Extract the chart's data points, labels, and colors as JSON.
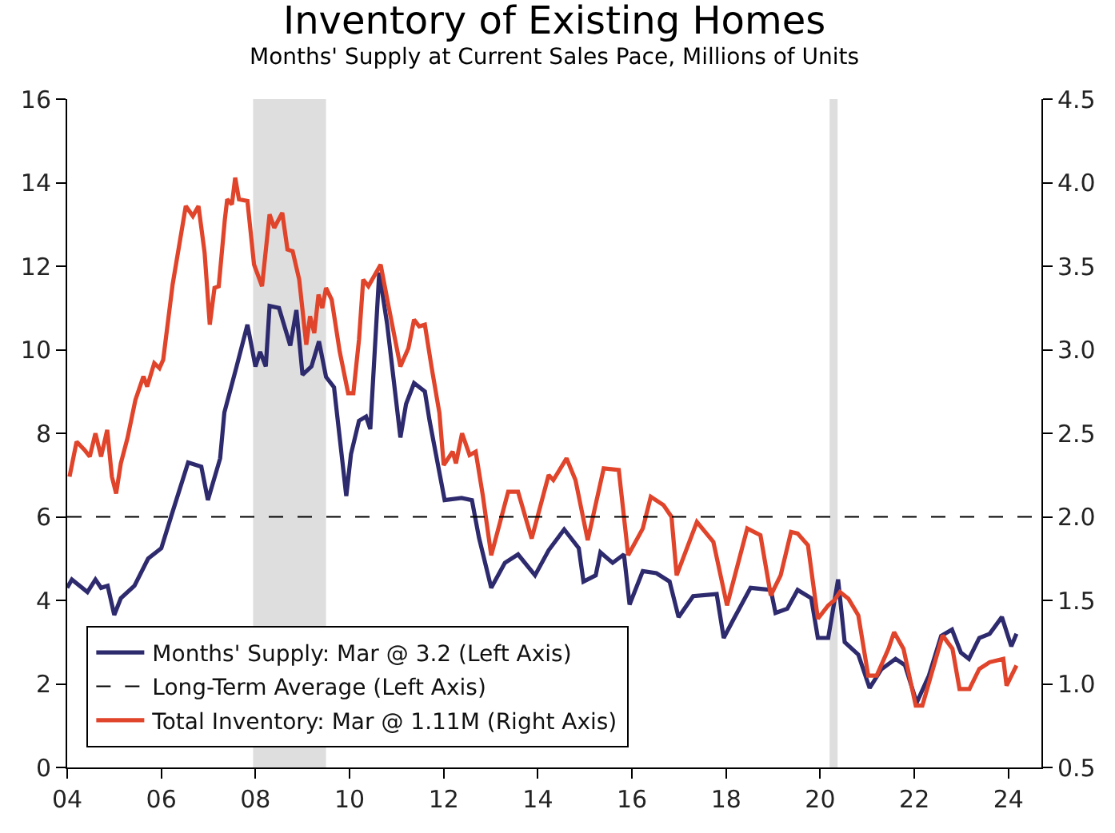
{
  "chart_data": {
    "type": "line",
    "title": "Inventory of Existing Homes",
    "subtitle": "Months' Supply at Current Sales Pace, Millions of Units",
    "xlim": [
      2004,
      2024.7
    ],
    "xticks": [
      {
        "value": 2004,
        "label": "04"
      },
      {
        "value": 2006,
        "label": "06"
      },
      {
        "value": 2008,
        "label": "08"
      },
      {
        "value": 2010,
        "label": "10"
      },
      {
        "value": 2012,
        "label": "12"
      },
      {
        "value": 2014,
        "label": "14"
      },
      {
        "value": 2016,
        "label": "16"
      },
      {
        "value": 2018,
        "label": "18"
      },
      {
        "value": 2020,
        "label": "20"
      },
      {
        "value": 2022,
        "label": "22"
      },
      {
        "value": 2024,
        "label": "24"
      }
    ],
    "ylim": [
      0,
      16
    ],
    "yticks": [
      0,
      2,
      4,
      6,
      8,
      10,
      12,
      14,
      16
    ],
    "y2lim": [
      0.5,
      4.5
    ],
    "y2ticks": [
      0.5,
      {
        "value": 1,
        "label": "1.0"
      },
      1.5,
      {
        "value": 2,
        "label": "2.0"
      },
      2.5,
      {
        "value": 3,
        "label": "3.0"
      },
      3.5,
      {
        "value": 4,
        "label": "4.0"
      },
      4.5
    ],
    "grid": false,
    "legend": "bottom left",
    "line_style": "solid",
    "marker": "none",
    "series": [
      {
        "name": "Months' Supply: Mar @ 3.2 (Left Axis)",
        "color": "#2e2a6e",
        "x": [
          2004.0,
          2004.1,
          2004.43,
          2004.6,
          2004.72,
          2004.86,
          2005.0,
          2005.14,
          2005.43,
          2005.72,
          2006.0,
          2006.22,
          2006.57,
          2006.85,
          2006.99,
          2007.25,
          2007.34,
          2007.6,
          2007.83,
          2008.0,
          2008.1,
          2008.22,
          2008.3,
          2008.5,
          2008.74,
          2008.87,
          2009.0,
          2009.19,
          2009.35,
          2009.5,
          2009.67,
          2009.93,
          2010.03,
          2010.2,
          2010.35,
          2010.44,
          2010.63,
          2010.8,
          2011.08,
          2011.2,
          2011.37,
          2011.6,
          2011.7,
          2012.02,
          2012.38,
          2012.6,
          2012.75,
          2013.01,
          2013.3,
          2013.58,
          2013.94,
          2014.23,
          2014.56,
          2014.87,
          2014.97,
          2015.23,
          2015.33,
          2015.59,
          2015.83,
          2015.95,
          2016.23,
          2016.52,
          2016.8,
          2016.99,
          2017.3,
          2017.8,
          2017.95,
          2018.16,
          2018.52,
          2018.95,
          2019.05,
          2019.3,
          2019.52,
          2019.81,
          2019.95,
          2020.17,
          2020.38,
          2020.52,
          2020.81,
          2021.05,
          2021.3,
          2021.6,
          2021.8,
          2022.05,
          2022.31,
          2022.57,
          2022.8,
          2022.99,
          2023.16,
          2023.38,
          2023.6,
          2023.86,
          2024.06,
          2024.17
        ],
        "values": [
          4.3,
          4.5,
          4.2,
          4.5,
          4.3,
          4.35,
          3.65,
          4.05,
          4.35,
          5.0,
          5.25,
          6.05,
          7.3,
          7.2,
          6.4,
          7.4,
          8.5,
          9.6,
          10.6,
          9.6,
          9.95,
          9.6,
          11.05,
          11.0,
          10.1,
          10.95,
          9.4,
          9.6,
          10.2,
          9.35,
          9.1,
          6.5,
          7.5,
          8.3,
          8.4,
          8.1,
          11.85,
          10.6,
          7.9,
          8.7,
          9.2,
          9.0,
          8.3,
          6.4,
          6.45,
          6.4,
          5.5,
          4.3,
          4.9,
          5.1,
          4.6,
          5.2,
          5.7,
          5.25,
          4.45,
          4.6,
          5.15,
          4.9,
          5.1,
          3.9,
          4.7,
          4.65,
          4.45,
          3.6,
          4.1,
          4.15,
          3.1,
          3.55,
          4.3,
          4.25,
          3.7,
          3.8,
          4.25,
          4.05,
          3.1,
          3.1,
          4.5,
          3.0,
          2.7,
          1.9,
          2.35,
          2.6,
          2.45,
          1.55,
          2.2,
          3.15,
          3.3,
          2.75,
          2.6,
          3.1,
          3.2,
          3.6,
          2.9,
          3.2
        ]
      },
      {
        "name": "Total Inventory: Mar @ 1.11M (Right Axis)",
        "color": "#e0442a",
        "axis": "y2",
        "x": [
          2004.05,
          2004.2,
          2004.37,
          2004.48,
          2004.6,
          2004.72,
          2004.85,
          2004.95,
          2005.04,
          2005.14,
          2005.28,
          2005.45,
          2005.62,
          2005.7,
          2005.85,
          2005.96,
          2006.04,
          2006.24,
          2006.52,
          2006.67,
          2006.79,
          2006.92,
          2007.03,
          2007.13,
          2007.22,
          2007.35,
          2007.4,
          2007.5,
          2007.57,
          2007.65,
          2007.83,
          2007.97,
          2008.14,
          2008.3,
          2008.4,
          2008.57,
          2008.68,
          2008.79,
          2008.93,
          2009.08,
          2009.16,
          2009.25,
          2009.34,
          2009.42,
          2009.5,
          2009.62,
          2009.79,
          2009.97,
          2010.08,
          2010.2,
          2010.29,
          2010.4,
          2010.66,
          2010.85,
          2011.08,
          2011.25,
          2011.37,
          2011.48,
          2011.6,
          2011.74,
          2011.91,
          2012.0,
          2012.19,
          2012.26,
          2012.39,
          2012.55,
          2012.68,
          2012.83,
          2013.01,
          2013.37,
          2013.58,
          2013.87,
          2014.23,
          2014.33,
          2014.61,
          2014.8,
          2015.06,
          2015.4,
          2015.72,
          2015.92,
          2016.23,
          2016.4,
          2016.67,
          2016.84,
          2016.95,
          2017.38,
          2017.73,
          2018.02,
          2018.45,
          2018.73,
          2018.95,
          2019.16,
          2019.38,
          2019.52,
          2019.74,
          2019.95,
          2020.17,
          2020.3,
          2020.42,
          2020.6,
          2020.81,
          2021.02,
          2021.2,
          2021.45,
          2021.57,
          2021.77,
          2022.03,
          2022.17,
          2022.6,
          2022.81,
          2022.96,
          2023.17,
          2023.38,
          2023.6,
          2023.89,
          2023.96,
          2024.17
        ],
        "values": [
          2.24,
          2.45,
          2.4,
          2.36,
          2.5,
          2.36,
          2.52,
          2.24,
          2.14,
          2.32,
          2.47,
          2.7,
          2.84,
          2.78,
          2.92,
          2.89,
          2.94,
          3.39,
          3.86,
          3.8,
          3.86,
          3.58,
          3.15,
          3.37,
          3.38,
          3.78,
          3.9,
          3.87,
          4.03,
          3.9,
          3.89,
          3.51,
          3.38,
          3.81,
          3.73,
          3.82,
          3.6,
          3.59,
          3.42,
          3.03,
          3.2,
          3.1,
          3.33,
          3.25,
          3.37,
          3.3,
          2.99,
          2.74,
          2.74,
          3.06,
          3.42,
          3.38,
          3.51,
          3.23,
          2.9,
          3.01,
          3.18,
          3.14,
          3.15,
          2.9,
          2.62,
          2.31,
          2.39,
          2.32,
          2.5,
          2.37,
          2.39,
          2.13,
          1.77,
          2.15,
          2.15,
          1.87,
          2.25,
          2.22,
          2.35,
          2.22,
          1.86,
          2.29,
          2.28,
          1.77,
          1.93,
          2.12,
          2.07,
          2.0,
          1.65,
          1.97,
          1.85,
          1.47,
          1.93,
          1.89,
          1.53,
          1.65,
          1.91,
          1.9,
          1.83,
          1.39,
          1.47,
          1.5,
          1.55,
          1.51,
          1.41,
          1.05,
          1.05,
          1.21,
          1.31,
          1.21,
          0.87,
          0.87,
          1.29,
          1.21,
          0.97,
          0.97,
          1.09,
          1.13,
          1.15,
          0.99,
          1.11
        ]
      }
    ],
    "ref_lines": [
      {
        "axis": "y",
        "value": 6,
        "label": "Long-Term Average (Left Axis)",
        "color": "#000000",
        "line_style": "dashed"
      }
    ],
    "bands": [
      {
        "axis": "x",
        "from": 2007.95,
        "to": 2009.5,
        "color": "#dedede"
      },
      {
        "axis": "x",
        "from": 2020.2,
        "to": 2020.37,
        "color": "#dedede"
      }
    ]
  }
}
